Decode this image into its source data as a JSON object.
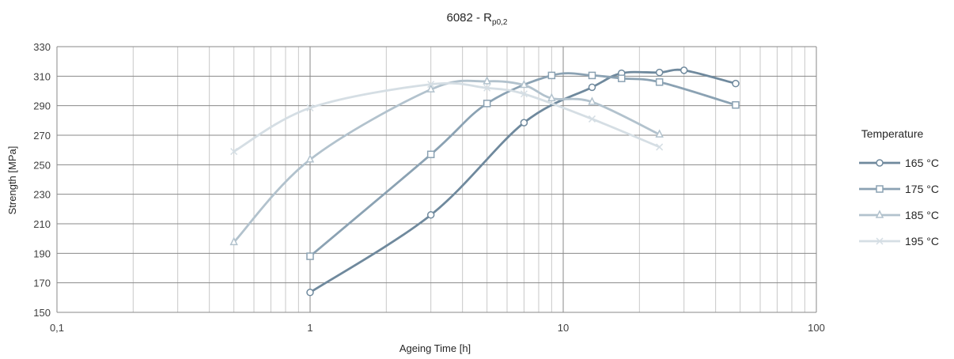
{
  "chart_data": {
    "type": "line",
    "title": "6082 - R",
    "title_subscript": "p0,2",
    "xlabel": "Ageing Time [h]",
    "ylabel": "Strength [MPa]",
    "x_scale": "log",
    "xlim": [
      0.1,
      100
    ],
    "ylim": [
      150,
      330
    ],
    "x_ticks": [
      "0,1",
      "1",
      "10",
      "100"
    ],
    "y_ticks": [
      "150",
      "170",
      "190",
      "210",
      "230",
      "250",
      "270",
      "290",
      "310",
      "330"
    ],
    "grid": true,
    "legend": {
      "title": "Temperature",
      "position": "right"
    },
    "series": [
      {
        "name": "165 °C",
        "color": "#6f899d",
        "marker": "circle",
        "points": [
          [
            1,
            163.5
          ],
          [
            3,
            216
          ],
          [
            7,
            278.5
          ],
          [
            13,
            302.5
          ],
          [
            17,
            312
          ],
          [
            24,
            312.5
          ],
          [
            30,
            314
          ],
          [
            48,
            305
          ]
        ]
      },
      {
        "name": "175 °C",
        "color": "#8ba2b3",
        "marker": "square",
        "points": [
          [
            1,
            188
          ],
          [
            3,
            257
          ],
          [
            5,
            291.5
          ],
          [
            9,
            310.5
          ],
          [
            13,
            310.5
          ],
          [
            17,
            308.5
          ],
          [
            24,
            306
          ],
          [
            48,
            290.5
          ]
        ]
      },
      {
        "name": "185 °C",
        "color": "#b2c2cd",
        "marker": "triangle",
        "points": [
          [
            0.5,
            197.5
          ],
          [
            1,
            253.5
          ],
          [
            3,
            301
          ],
          [
            5,
            306.5
          ],
          [
            7,
            304
          ],
          [
            9,
            295
          ],
          [
            13,
            292.5
          ],
          [
            24,
            270.5
          ]
        ]
      },
      {
        "name": "195 °C",
        "color": "#d5dee4",
        "marker": "cross",
        "points": [
          [
            0.5,
            259
          ],
          [
            1,
            288.5
          ],
          [
            3,
            304.5
          ],
          [
            5,
            302
          ],
          [
            7,
            298
          ],
          [
            13,
            281
          ],
          [
            24,
            262
          ]
        ]
      }
    ]
  }
}
